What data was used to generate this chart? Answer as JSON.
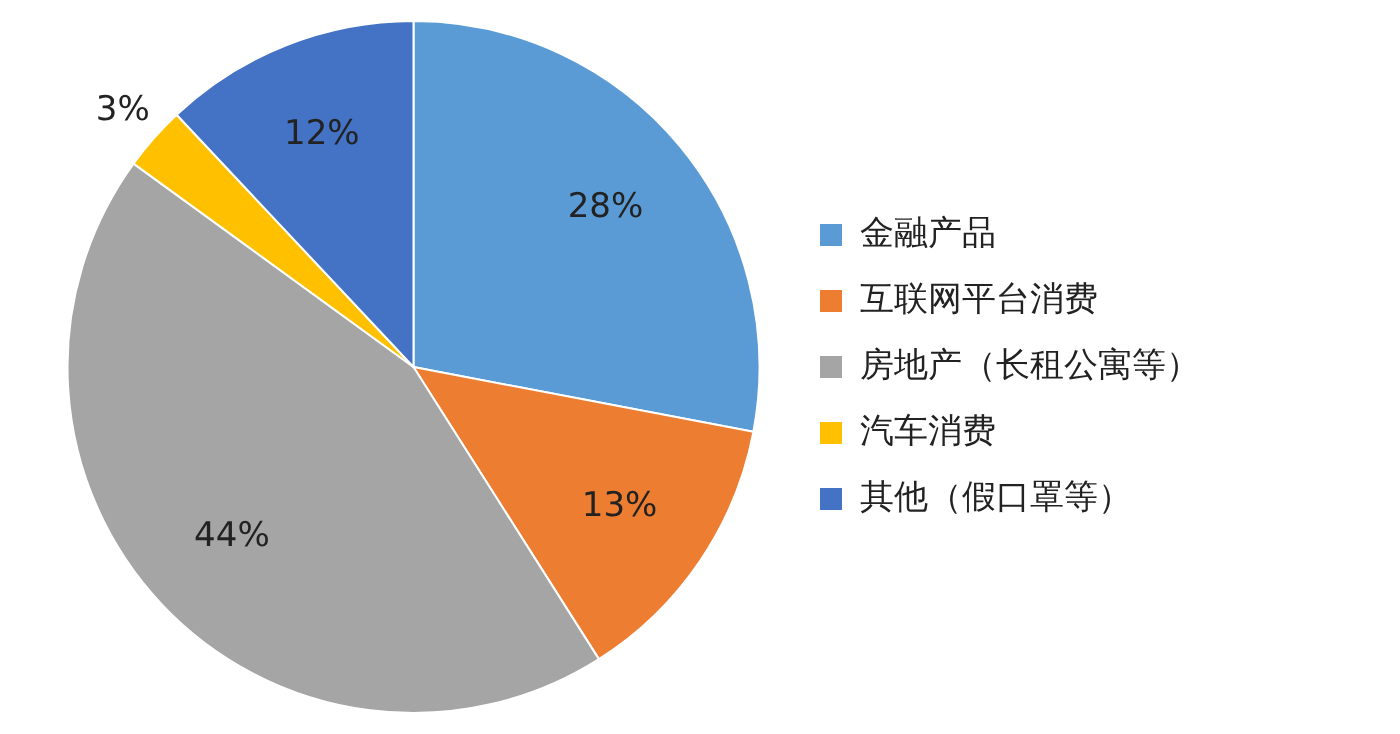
{
  "chart_data": {
    "type": "pie",
    "categories": [
      "金融产品",
      "互联网平台消费",
      "房地产（长租公寓等）",
      "汽车消费",
      "其他（假口罩等）"
    ],
    "values": [
      28,
      13,
      44,
      3,
      12
    ],
    "value_labels": [
      "28%",
      "13%",
      "44%",
      "3%",
      "12%"
    ],
    "colors": [
      "#5b9bd5",
      "#ed7d31",
      "#a5a5a5",
      "#ffc000",
      "#4472c4"
    ],
    "legend": "right"
  }
}
